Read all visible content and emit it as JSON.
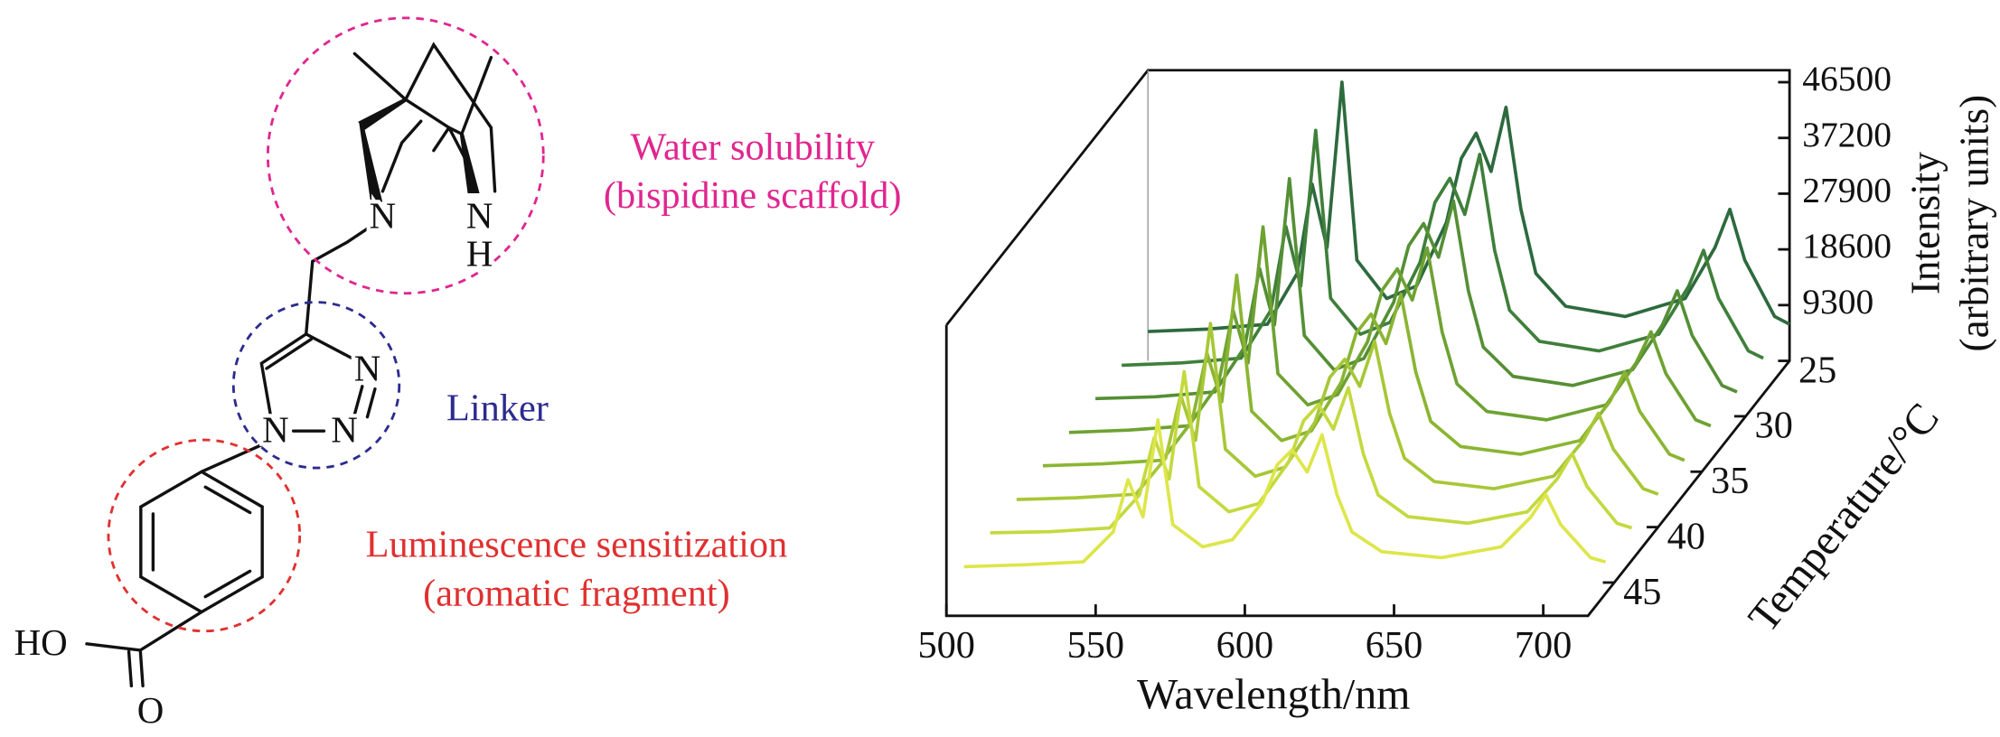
{
  "structure": {
    "atoms": [
      "N",
      "N",
      "H",
      "N",
      "N",
      "N",
      "HO",
      "O"
    ],
    "annotations": [
      {
        "lines": [
          "Water solubility",
          "(bispidine scaffold)"
        ],
        "color": "#e0268f"
      },
      {
        "lines": [
          "Linker"
        ],
        "color": "#2b2b8f"
      },
      {
        "lines": [
          "Luminescence sensitization",
          "(aromatic fragment)"
        ],
        "color": "#e03030"
      }
    ]
  },
  "chart_data": {
    "type": "waterfall3d",
    "xlabel": "Wavelength/nm",
    "ylabel": [
      "Intensity",
      "(arbitrary units)"
    ],
    "zlabel": "Temperature/°C",
    "x": [
      500,
      520,
      540,
      550,
      555,
      560,
      565,
      570,
      580,
      590,
      600,
      605,
      610,
      615,
      620,
      625,
      630,
      640,
      660,
      680,
      690,
      695,
      700,
      710,
      715
    ],
    "xlim": [
      500,
      715
    ],
    "xticks": [
      500,
      550,
      600,
      650,
      700
    ],
    "ylim": [
      0,
      48500
    ],
    "yticks": [
      9300,
      18600,
      27900,
      37200,
      46500
    ],
    "zlim": [
      25,
      48
    ],
    "zticks": [
      25,
      30,
      35,
      40,
      45
    ],
    "series": [
      {
        "z": 25,
        "color": "#2d6a3e",
        "values": [
          4900,
          5300,
          6100,
          14600,
          29500,
          18900,
          46500,
          16800,
          10400,
          12500,
          23100,
          33800,
          38000,
          31600,
          42300,
          25300,
          14600,
          9100,
          7400,
          10400,
          18900,
          25300,
          16800,
          7400,
          6100
        ]
      },
      {
        "z": 28,
        "color": "#3f7f3a",
        "values": [
          4800,
          5200,
          6000,
          14000,
          28000,
          18000,
          44000,
          16000,
          10000,
          12000,
          22000,
          32000,
          36000,
          30000,
          40000,
          24000,
          14000,
          8800,
          7200,
          10000,
          18000,
          24000,
          16000,
          7200,
          6000
        ]
      },
      {
        "z": 31,
        "color": "#558f35",
        "values": [
          4800,
          5100,
          5900,
          13400,
          26500,
          17100,
          41500,
          15300,
          9600,
          11500,
          20900,
          30300,
          34000,
          28400,
          37800,
          22800,
          13400,
          8500,
          7000,
          9600,
          17100,
          22800,
          15300,
          7000,
          5900
        ]
      },
      {
        "z": 34,
        "color": "#6ea232",
        "values": [
          4700,
          5100,
          5800,
          12800,
          25000,
          16300,
          39000,
          14500,
          9300,
          11000,
          19800,
          28500,
          32000,
          26800,
          35500,
          21500,
          12800,
          8200,
          6800,
          9300,
          16300,
          21500,
          14500,
          6800,
          5800
        ]
      },
      {
        "z": 37,
        "color": "#8ab532",
        "values": [
          4700,
          5000,
          5600,
          12100,
          23500,
          15400,
          36500,
          13800,
          8900,
          10500,
          18600,
          26800,
          30000,
          25100,
          33300,
          20300,
          12100,
          7900,
          6600,
          8900,
          15400,
          20300,
          13800,
          6600,
          5600
        ]
      },
      {
        "z": 40,
        "color": "#a7c737",
        "values": [
          4600,
          4900,
          5500,
          11500,
          22000,
          14500,
          34000,
          13000,
          8500,
          10000,
          17500,
          25000,
          28000,
          23500,
          31000,
          19000,
          11500,
          7600,
          6400,
          8500,
          14500,
          19000,
          13000,
          6400,
          5500
        ]
      },
      {
        "z": 43,
        "color": "#c4d93f",
        "values": [
          4600,
          4800,
          5400,
          10900,
          20500,
          13600,
          31500,
          12300,
          8100,
          9500,
          16400,
          23300,
          26000,
          21900,
          28800,
          17800,
          10900,
          7300,
          6200,
          8100,
          13600,
          17800,
          12300,
          6200,
          5400
        ]
      },
      {
        "z": 46,
        "color": "#dde64a",
        "values": [
          4500,
          4800,
          5300,
          10300,
          19000,
          12800,
          29000,
          11500,
          7800,
          9000,
          15300,
          21500,
          24000,
          20300,
          26500,
          16500,
          10300,
          7000,
          6000,
          7800,
          12800,
          16500,
          11500,
          6000,
          5300
        ]
      }
    ]
  }
}
